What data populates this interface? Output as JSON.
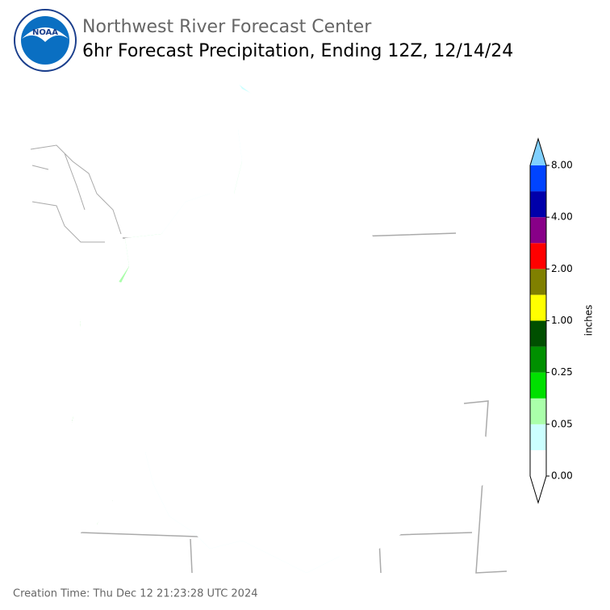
{
  "header": {
    "logo_text": "NOAA",
    "agency": "Northwest River Forecast Center",
    "title": "6hr Forecast Precipitation, Ending 12Z, 12/14/24"
  },
  "colorbar": {
    "label": "inches",
    "ticks": [
      "0.00",
      "0.05",
      "0.25",
      "1.00",
      "2.00",
      "4.00",
      "8.00"
    ]
  },
  "footer": {
    "creation_time": "Creation Time: Thu Dec 12 21:23:28 UTC 2024"
  }
}
